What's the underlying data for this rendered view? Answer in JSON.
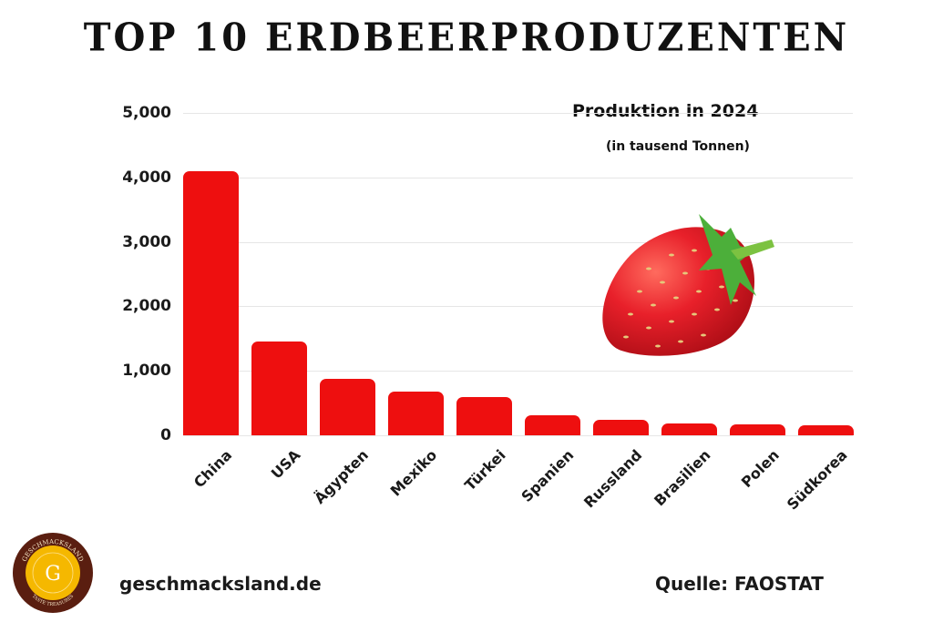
{
  "header": {
    "title": "TOP 10 ERDBEERPRODUZENTEN"
  },
  "chart_data": {
    "type": "bar",
    "title": "Produktion in 2024",
    "subtitle": "(in tausend Tonnen)",
    "xlabel": "",
    "ylabel": "",
    "ylim": [
      0,
      5000
    ],
    "yticks": [
      "0",
      "1,000",
      "2,000",
      "3,000",
      "4,000",
      "5,000"
    ],
    "grid": true,
    "legend": null,
    "categories": [
      "China",
      "USA",
      "Ägypten",
      "Mexiko",
      "Türkei",
      "Spanien",
      "Russland",
      "Brasilien",
      "Polen",
      "Südkorea"
    ],
    "values": [
      4100,
      1455,
      880,
      680,
      590,
      305,
      240,
      190,
      165,
      160
    ],
    "bar_color": "#ee0f0f"
  },
  "illustration": {
    "icon": "strawberry-icon"
  },
  "footer": {
    "logo_text_top": "GESCHMACKSLAND",
    "logo_letter": "G",
    "logo_text_bottom": "TASTE TREASURES",
    "website": "geschmacksland.de",
    "source": "Quelle: FAOSTAT"
  },
  "colors": {
    "bar": "#ee0f0f",
    "logo_ring": "#5a1e10",
    "logo_center": "#f5b800"
  }
}
